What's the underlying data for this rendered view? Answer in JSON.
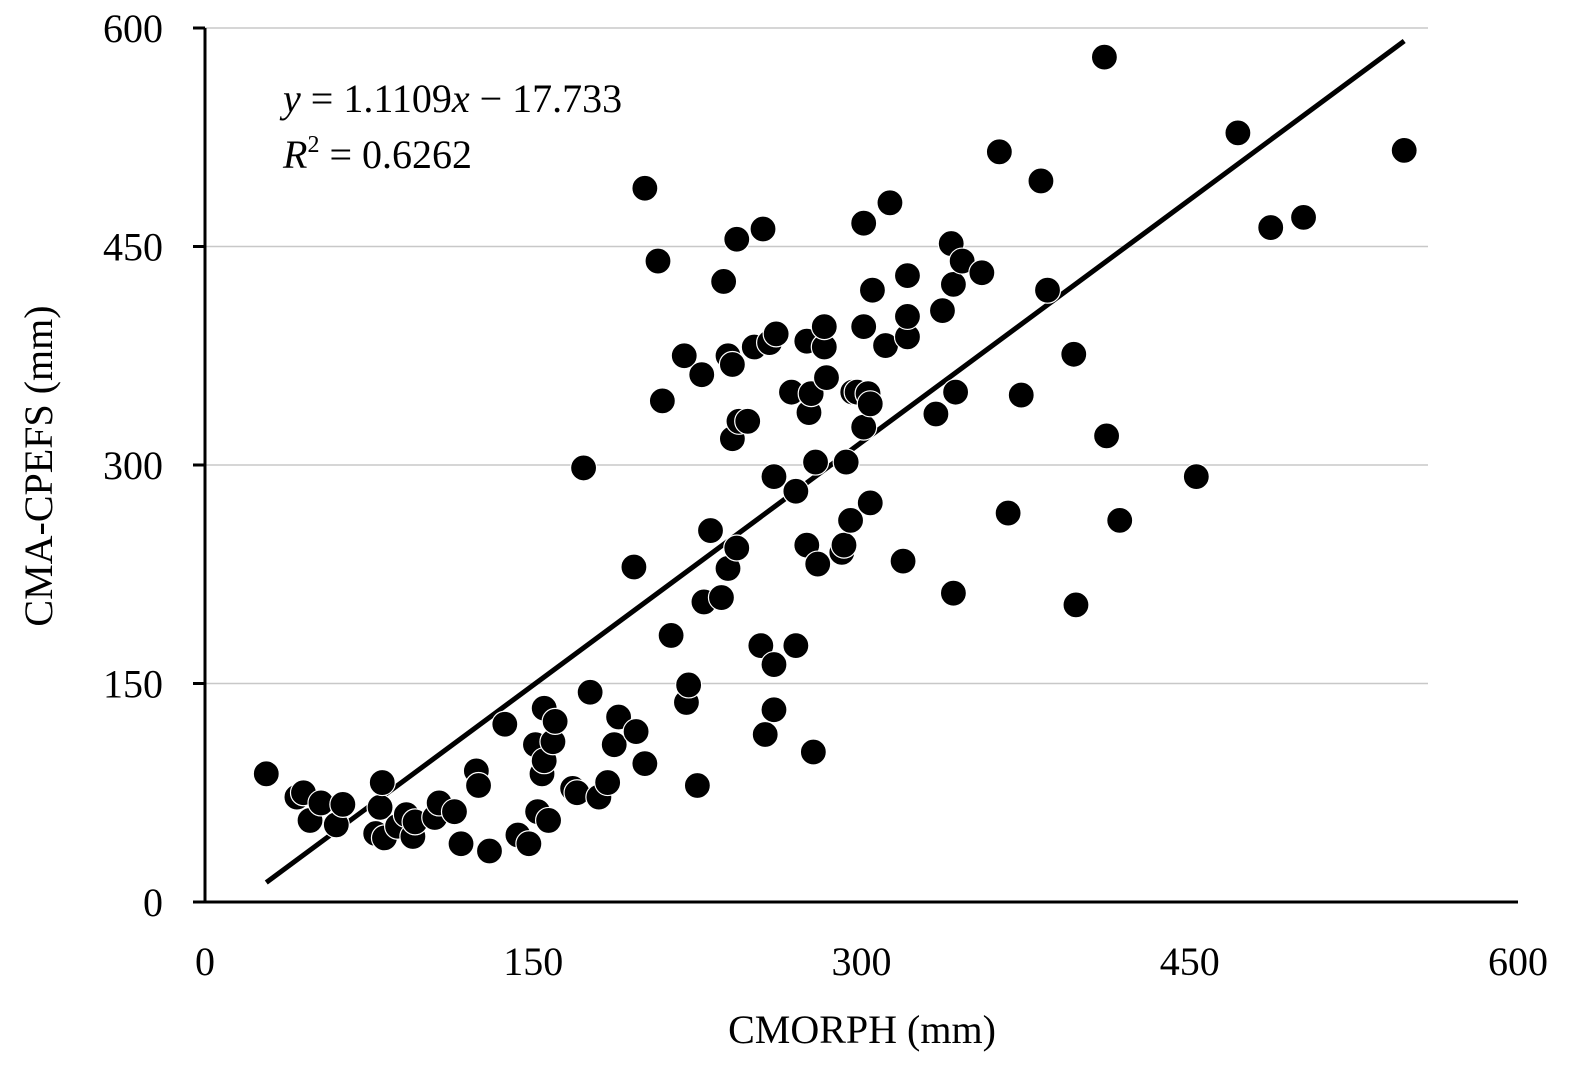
{
  "chart_data": {
    "type": "scatter",
    "xlabel": "CMORPH (mm)",
    "ylabel": "CMA-CPEFS (mm)",
    "xlim": [
      0,
      600
    ],
    "ylim": [
      0,
      600
    ],
    "xticks": [
      "0",
      "150",
      "300",
      "450",
      "600"
    ],
    "yticks": [
      "0",
      "150",
      "300",
      "450",
      "600"
    ],
    "grid": "horizontal",
    "trendline": {
      "slope": 1.1109,
      "intercept": -17.733,
      "x_range": [
        28,
        548
      ],
      "equation_y": "y",
      "equation_rest": " = 1.1109",
      "equation_x": "x",
      "equation_tail": " − 17.733",
      "r_label": "R",
      "r_sup": "2",
      "r_rest": " = 0.6262"
    },
    "points": [
      [
        28,
        88
      ],
      [
        42,
        72
      ],
      [
        45,
        75
      ],
      [
        48,
        56
      ],
      [
        53,
        68
      ],
      [
        60,
        53
      ],
      [
        63,
        67
      ],
      [
        78,
        47
      ],
      [
        80,
        65
      ],
      [
        81,
        82
      ],
      [
        82,
        44
      ],
      [
        88,
        52
      ],
      [
        92,
        60
      ],
      [
        95,
        45
      ],
      [
        96,
        55
      ],
      [
        105,
        58
      ],
      [
        107,
        68
      ],
      [
        114,
        62
      ],
      [
        117,
        40
      ],
      [
        124,
        90
      ],
      [
        125,
        80
      ],
      [
        130,
        35
      ],
      [
        137,
        122
      ],
      [
        143,
        46
      ],
      [
        148,
        40
      ],
      [
        151,
        108
      ],
      [
        152,
        62
      ],
      [
        154,
        88
      ],
      [
        155,
        97
      ],
      [
        155,
        133
      ],
      [
        157,
        56
      ],
      [
        159,
        110
      ],
      [
        160,
        124
      ],
      [
        168,
        78
      ],
      [
        170,
        75
      ],
      [
        173,
        298
      ],
      [
        176,
        144
      ],
      [
        180,
        72
      ],
      [
        184,
        82
      ],
      [
        187,
        108
      ],
      [
        189,
        127
      ],
      [
        196,
        230
      ],
      [
        197,
        117
      ],
      [
        201,
        95
      ],
      [
        201,
        490
      ],
      [
        207,
        440
      ],
      [
        209,
        344
      ],
      [
        213,
        183
      ],
      [
        219,
        375
      ],
      [
        220,
        137
      ],
      [
        221,
        149
      ],
      [
        225,
        80
      ],
      [
        227,
        362
      ],
      [
        228,
        206
      ],
      [
        231,
        255
      ],
      [
        236,
        209
      ],
      [
        237,
        426
      ],
      [
        239,
        229
      ],
      [
        239,
        375
      ],
      [
        241,
        318
      ],
      [
        241,
        369
      ],
      [
        243,
        243
      ],
      [
        243,
        455
      ],
      [
        244,
        330
      ],
      [
        248,
        330
      ],
      [
        251,
        381
      ],
      [
        254,
        176
      ],
      [
        255,
        462
      ],
      [
        256,
        115
      ],
      [
        258,
        384
      ],
      [
        260,
        163
      ],
      [
        260,
        132
      ],
      [
        260,
        292
      ],
      [
        261,
        390
      ],
      [
        268,
        350
      ],
      [
        270,
        282
      ],
      [
        270,
        176
      ],
      [
        275,
        245
      ],
      [
        275,
        385
      ],
      [
        276,
        336
      ],
      [
        277,
        349
      ],
      [
        278,
        103
      ],
      [
        279,
        302
      ],
      [
        280,
        232
      ],
      [
        283,
        381
      ],
      [
        283,
        395
      ],
      [
        284,
        360
      ],
      [
        291,
        240
      ],
      [
        292,
        245
      ],
      [
        293,
        302
      ],
      [
        295,
        262
      ],
      [
        296,
        350
      ],
      [
        298,
        350
      ],
      [
        301,
        326
      ],
      [
        301,
        395
      ],
      [
        301,
        466
      ],
      [
        303,
        349
      ],
      [
        304,
        342
      ],
      [
        304,
        274
      ],
      [
        305,
        420
      ],
      [
        311,
        382
      ],
      [
        313,
        480
      ],
      [
        319,
        234
      ],
      [
        321,
        388
      ],
      [
        321,
        402
      ],
      [
        321,
        430
      ],
      [
        334,
        335
      ],
      [
        337,
        406
      ],
      [
        341,
        452
      ],
      [
        342,
        212
      ],
      [
        342,
        424
      ],
      [
        343,
        350
      ],
      [
        346,
        440
      ],
      [
        355,
        432
      ],
      [
        363,
        515
      ],
      [
        367,
        267
      ],
      [
        373,
        348
      ],
      [
        382,
        495
      ],
      [
        385,
        420
      ],
      [
        397,
        376
      ],
      [
        398,
        204
      ],
      [
        411,
        580
      ],
      [
        412,
        320
      ],
      [
        418,
        262
      ],
      [
        453,
        292
      ],
      [
        472,
        528
      ],
      [
        487,
        463
      ],
      [
        502,
        470
      ],
      [
        548,
        516
      ]
    ]
  }
}
